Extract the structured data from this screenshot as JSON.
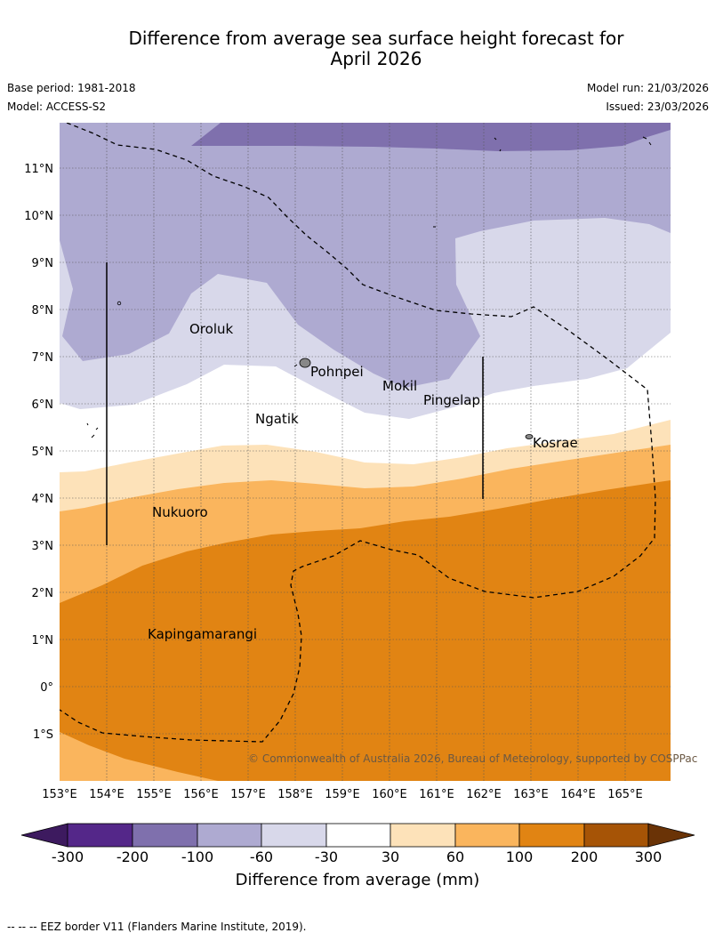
{
  "title_line1": "Difference from average sea surface height forecast for",
  "title_line2": "April 2026",
  "base_period": "Base period: 1981-2018",
  "model": "Model: ACCESS-S2",
  "model_run": "Model run: 21/03/2026",
  "issued": "Issued: 23/03/2026",
  "copyright": "© Commonwealth of Australia 2026, Bureau of Meteorology, supported by COSPPac",
  "lat_labels": [
    "11°N",
    "10°N",
    "9°N",
    "8°N",
    "7°N",
    "6°N",
    "5°N",
    "4°N",
    "3°N",
    "2°N",
    "1°N",
    "0°",
    "1°S"
  ],
  "lon_labels": [
    "153°E",
    "154°E",
    "155°E",
    "156°E",
    "157°E",
    "158°E",
    "159°E",
    "160°E",
    "161°E",
    "162°E",
    "163°E",
    "164°E",
    "165°E"
  ],
  "places": [
    "Oroluk",
    "Pohnpei",
    "Mokil",
    "Pingelap",
    "Ngatik",
    "Kosrae",
    "Nukuoro",
    "Kapingamarangi"
  ],
  "colorbar": {
    "ticks": [
      "-300",
      "-200",
      "-100",
      "-60",
      "-30",
      "30",
      "60",
      "100",
      "200",
      "300"
    ],
    "colors": [
      "#3d1a5f",
      "#542789",
      "#7f70ad",
      "#aeaad1",
      "#d8d8ea",
      "#ffffff",
      "#fde2b9",
      "#fab55d",
      "#e18413",
      "#a65406",
      "#6a3306"
    ],
    "title": "Difference from average (mm)"
  },
  "footer": "--  --  -- EEZ border V11 (Flanders Marine Institute, 2019)."
}
